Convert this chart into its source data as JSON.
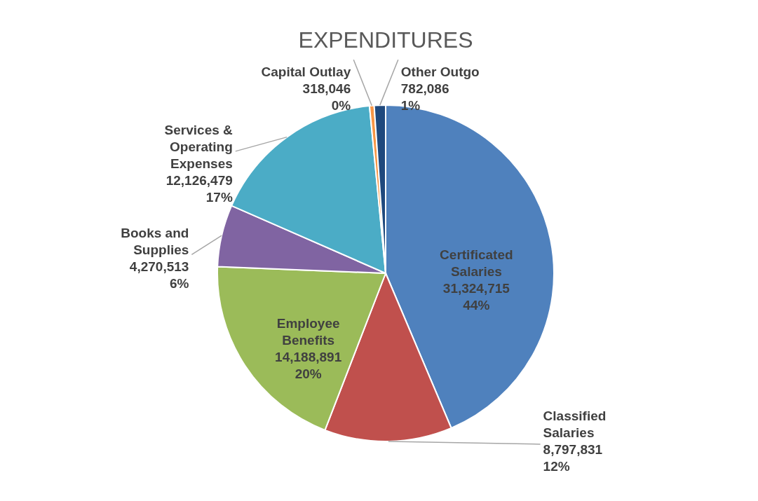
{
  "chart_data": {
    "type": "pie",
    "title": "EXPENDITURES",
    "categories": [
      "Certificated Salaries",
      "Classified Salaries",
      "Employee Benefits",
      "Books and Supplies",
      "Services & Operating Expenses",
      "Capital Outlay",
      "Other Outgo"
    ],
    "values": [
      31324715,
      8797831,
      14188891,
      4270513,
      12126479,
      318046,
      782086
    ],
    "value_labels": [
      "31,324,715\n44%",
      "8,797,831\n12%",
      "14,188,891\n20%",
      "4,270,513\n6%",
      "12,126,479\n17%",
      "318,046\n0%",
      "782,086\n1%"
    ],
    "colors": [
      "#4f81bd",
      "#c0504d",
      "#9bbb59",
      "#8064a2",
      "#4bacc6",
      "#f79646",
      "#1f497d"
    ]
  }
}
